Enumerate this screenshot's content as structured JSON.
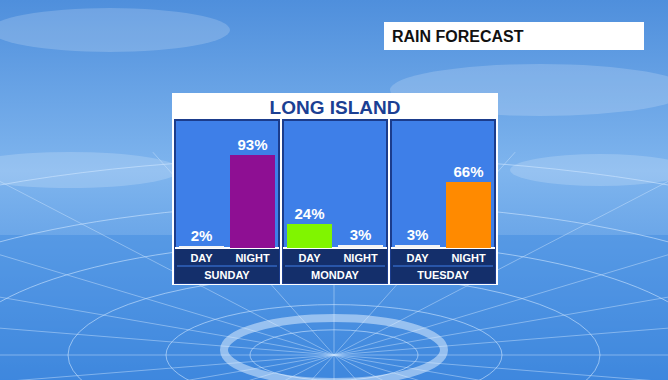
{
  "chart_data": {
    "type": "bar",
    "title": "LONG ISLAND",
    "subtitle": "RAIN FORECAST",
    "categories": [
      "SUNDAY",
      "MONDAY",
      "TUESDAY"
    ],
    "series": [
      {
        "name": "DAY",
        "values": [
          2,
          24,
          3
        ],
        "value_labels": [
          "2%",
          "24%",
          "3%"
        ],
        "colors": [
          "#f4f4f4",
          "#80f500",
          "#f4f4f4"
        ]
      },
      {
        "name": "NIGHT",
        "values": [
          93,
          3,
          66
        ],
        "value_labels": [
          "93%",
          "3%",
          "66%"
        ],
        "colors": [
          "#8e0f93",
          "#f4f4f4",
          "#ff8a00"
        ]
      }
    ],
    "ylim": [
      0,
      100
    ],
    "tick_labels": false,
    "data_labels": true,
    "grid": false
  }
}
